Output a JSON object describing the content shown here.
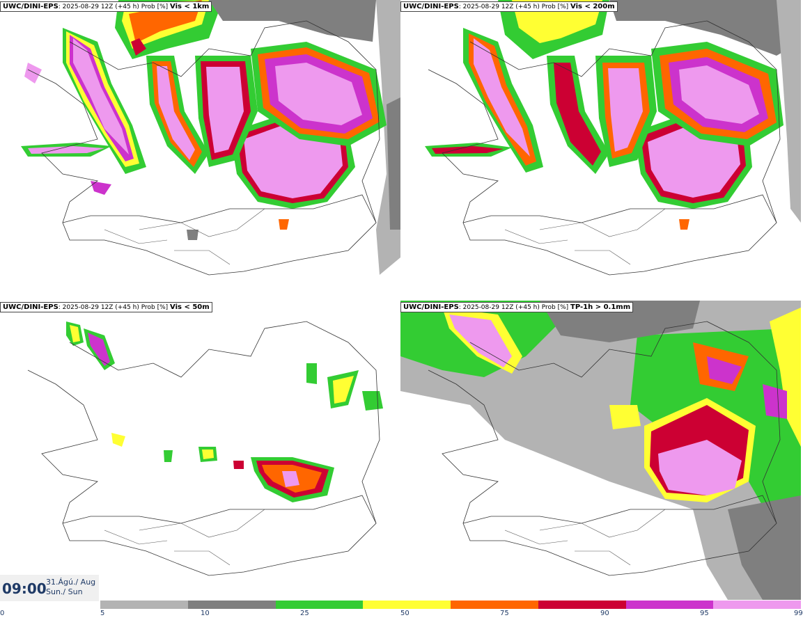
{
  "panels": [
    {
      "source": "UWC/DINI-EPS",
      "meta": ": 2025-08-29 12Z (+45 h) Prob [%] ",
      "threshold": "Vis < 1km"
    },
    {
      "source": "UWC/DINI-EPS",
      "meta": ": 2025-08-29 12Z (+45 h) Prob [%] ",
      "threshold": "Vis < 200m"
    },
    {
      "source": "UWC/DINI-EPS",
      "meta": ": 2025-08-29 12Z (+45 h) Prob [%] ",
      "threshold": "Vis < 50m"
    },
    {
      "source": "UWC/DINI-EPS",
      "meta": ": 2025-08-29 12Z (+45 h) Prob [%] ",
      "threshold": "TP-1h > 0.1mm"
    }
  ],
  "valid_time": {
    "time": "09:00",
    "date_line1": "31.Ágú./ Aug",
    "date_line2": "Sun./ Sun"
  },
  "legend": {
    "ticks": [
      "0",
      "5",
      "10",
      "25",
      "50",
      "75",
      "90",
      "95",
      "99"
    ],
    "colors": [
      "#b3b3b3",
      "#7f7f7f",
      "#33cc33",
      "#ffff33",
      "#ff6600",
      "#cc0033",
      "#cc33cc",
      "#ee99ee"
    ]
  }
}
